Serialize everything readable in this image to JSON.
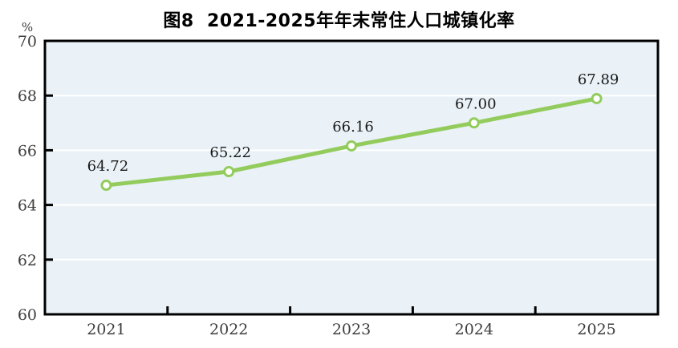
{
  "chart": {
    "title": "图8  2021-2025年年末常住人口城镇化率",
    "unit_label": "%"
  },
  "chart_data": {
    "type": "line",
    "title": "图8  2021-2025年年末常住人口城镇化率",
    "categories": [
      "2021",
      "2022",
      "2023",
      "2024",
      "2025"
    ],
    "values": [
      64.72,
      65.22,
      66.16,
      67.0,
      67.89
    ],
    "point_labels": [
      "64.72",
      "65.22",
      "66.16",
      "67.00",
      "67.89"
    ],
    "ylabel": "%",
    "ylim": [
      60,
      70
    ],
    "yticks": [
      60,
      62,
      64,
      66,
      68,
      70
    ],
    "grid": true,
    "legend": "none",
    "colors": {
      "line": "#93cc5d",
      "marker_fill": "#ffffff",
      "plot_background": "#eaf2f8",
      "gridline": "#ffffff",
      "axis": "#000000",
      "data_label": "#1a1a1a",
      "tick_label": "#3d3d3d",
      "title": "#000000"
    }
  }
}
